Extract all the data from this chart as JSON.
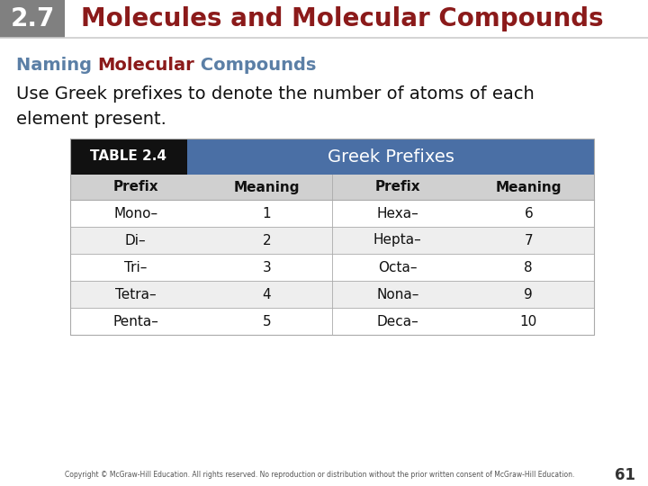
{
  "header_number": "2.7",
  "header_number_bg": "#808080",
  "header_number_color": "#ffffff",
  "header_title": "Molecules and Molecular Compounds",
  "header_title_color": "#8B1A1A",
  "subtitle_parts": [
    {
      "text": "Naming ",
      "color": "#5b7fa6"
    },
    {
      "text": "Molecular",
      "color": "#8B1A1A"
    },
    {
      "text": " Compounds",
      "color": "#5b7fa6"
    }
  ],
  "body_text_line1": "Use Greek prefixes to denote the number of atoms of each",
  "body_text_line2": "element present.",
  "body_text_color": "#111111",
  "table_label": "TABLE 2.4",
  "table_label_bg": "#111111",
  "table_label_color": "#ffffff",
  "table_title": "Greek Prefixes",
  "table_title_bg": "#4a6fa5",
  "table_title_color": "#ffffff",
  "col_headers": [
    "Prefix",
    "Meaning",
    "Prefix",
    "Meaning"
  ],
  "col_header_bg": "#d0d0d0",
  "rows": [
    [
      "Mono–",
      "1",
      "Hexa–",
      "6"
    ],
    [
      "Di–",
      "2",
      "Hepta–",
      "7"
    ],
    [
      "Tri–",
      "3",
      "Octa–",
      "8"
    ],
    [
      "Tetra–",
      "4",
      "Nona–",
      "9"
    ],
    [
      "Penta–",
      "5",
      "Deca–",
      "10"
    ]
  ],
  "row_colors": [
    "#ffffff",
    "#eeeeee",
    "#ffffff",
    "#eeeeee",
    "#ffffff"
  ],
  "footer_text": "Copyright © McGraw-Hill Education. All rights reserved. No reproduction or distribution without the prior written consent of McGraw-Hill Education.",
  "footer_page": "61",
  "footer_color": "#555555"
}
